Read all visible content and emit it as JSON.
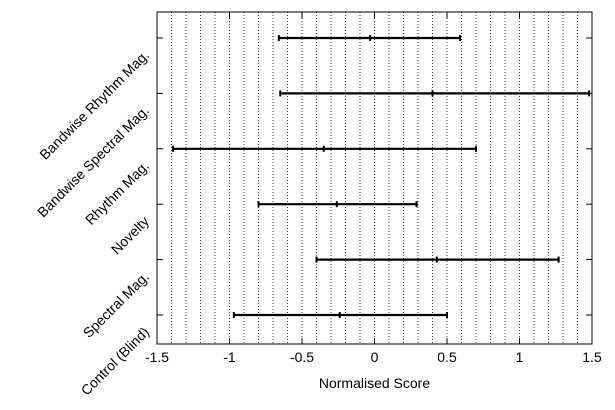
{
  "chart_data": {
    "type": "errorbar",
    "orientation": "horizontal",
    "title": "",
    "xlabel": "Normalised Score",
    "ylabel": "",
    "xlim": [
      -1.5,
      1.5
    ],
    "x_major_ticks": [
      -1.5,
      -1,
      -0.5,
      0,
      0.5,
      1,
      1.5
    ],
    "x_tick_labels": [
      "-1.5",
      "-1",
      "-0.5",
      "0",
      "0.5",
      "1",
      "1.5"
    ],
    "x_grid_step": 0.1,
    "grid": "vertical dotted",
    "categories": [
      "Bandwise Rhythm Mag.",
      "Bandwise Spectral Mag.",
      "Rhythm Mag.",
      "Novelty",
      "Spectral Mag.",
      "Control (Blind)"
    ],
    "points": [
      {
        "category": "Bandwise Rhythm Mag.",
        "low": -0.66,
        "mean": -0.03,
        "high": 0.59
      },
      {
        "category": "Bandwise Spectral Mag.",
        "low": -0.65,
        "mean": 0.4,
        "high": 1.48
      },
      {
        "category": "Rhythm Mag.",
        "low": -1.39,
        "mean": -0.35,
        "high": 0.7
      },
      {
        "category": "Novelty",
        "low": -0.8,
        "mean": -0.26,
        "high": 0.29
      },
      {
        "category": "Spectral Mag.",
        "low": -0.4,
        "mean": 0.43,
        "high": 1.27
      },
      {
        "category": "Control (Blind)",
        "low": -0.97,
        "mean": -0.24,
        "high": 0.5
      }
    ],
    "colors": {
      "line": "#000000",
      "grid": "#000000"
    }
  }
}
